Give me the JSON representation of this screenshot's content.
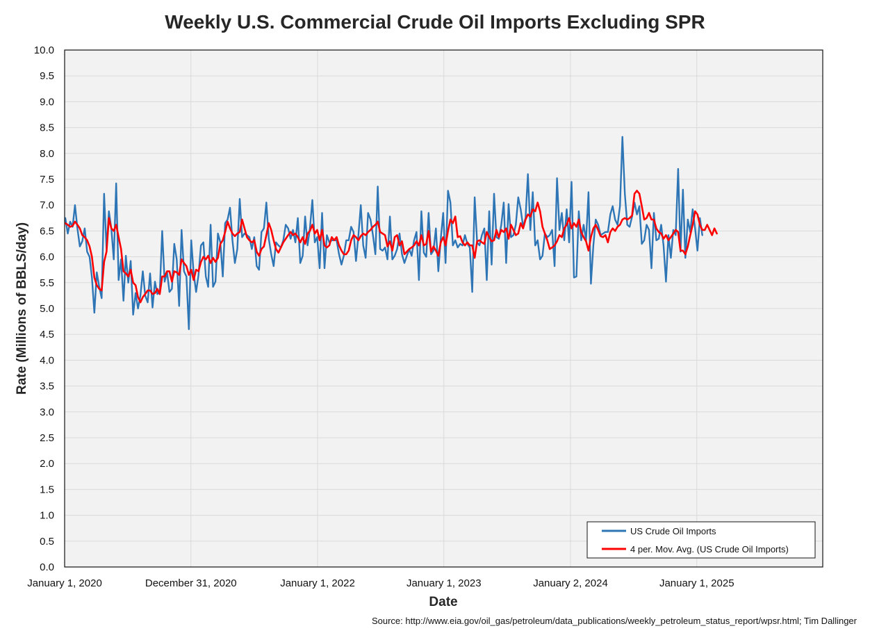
{
  "title": "Weekly U.S. Commercial Crude Oil Imports Excluding SPR",
  "source": "Source: http://www.eia.gov/oil_gas/petroleum/data_publications/weekly_petroleum_status_report/wpsr.html; Tim Dallinger",
  "colors": {
    "imports": "#2e75b6",
    "moving_avg": "#ff0000",
    "plot_bg": "#f2f2f2",
    "grid": "#d9d9d9"
  },
  "chart_data": {
    "type": "line",
    "title": "Weekly U.S. Commercial Crude Oil Imports Excluding SPR",
    "xlabel": "Date",
    "ylabel": "Rate (Millions of BBLS/day)",
    "ylim": [
      0,
      10
    ],
    "y_ticks": [
      "0.0",
      "0.5",
      "1.0",
      "1.5",
      "2.0",
      "2.5",
      "3.0",
      "3.5",
      "4.0",
      "4.5",
      "5.0",
      "5.5",
      "6.0",
      "6.5",
      "7.0",
      "7.5",
      "8.0",
      "8.5",
      "9.0",
      "9.5",
      "10.0"
    ],
    "x_ticks": [
      "January 1, 2020",
      "December 31, 2020",
      "January 1, 2022",
      "January 1, 2023",
      "January 2, 2024",
      "January 1, 2025"
    ],
    "x_range": [
      "2020-01-01",
      "2025-12-31"
    ],
    "first_week": "2020-01-03",
    "x_step": "1 week",
    "grid": true,
    "legend_position": "bottom-right",
    "series": [
      {
        "name": "US Crude Oil Imports",
        "values": [
          6.75,
          6.45,
          6.68,
          6.58,
          7.0,
          6.55,
          6.2,
          6.3,
          6.55,
          6.1,
          6.0,
          5.6,
          4.92,
          5.7,
          5.42,
          5.2,
          7.22,
          6.15,
          6.88,
          6.55,
          5.95,
          7.42,
          5.55,
          5.95,
          5.15,
          6.02,
          5.5,
          5.92,
          4.88,
          5.3,
          5.0,
          5.25,
          5.72,
          5.25,
          5.12,
          5.68,
          5.02,
          5.52,
          5.28,
          5.32,
          6.5,
          5.52,
          5.7,
          5.32,
          5.38,
          6.25,
          5.95,
          5.05,
          6.52,
          5.72,
          5.62,
          4.6,
          6.32,
          5.68,
          5.32,
          5.65,
          6.22,
          6.28,
          5.62,
          5.42,
          6.62,
          5.42,
          5.52,
          6.45,
          6.28,
          5.62,
          6.65,
          6.72,
          6.95,
          6.32,
          5.88,
          6.15,
          7.12,
          6.38,
          6.45,
          6.42,
          6.38,
          6.15,
          6.38,
          5.82,
          5.75,
          6.48,
          6.55,
          7.05,
          6.35,
          6.05,
          5.82,
          6.28,
          6.22,
          6.18,
          6.32,
          6.62,
          6.55,
          6.35,
          6.52,
          6.28,
          6.75,
          5.88,
          6.02,
          6.78,
          6.22,
          6.55,
          7.1,
          6.28,
          6.38,
          5.78,
          6.85,
          5.78,
          6.42,
          6.28,
          6.32,
          6.32,
          6.32,
          6.05,
          5.85,
          6.02,
          6.32,
          6.32,
          6.58,
          6.48,
          5.92,
          6.42,
          7.0,
          6.22,
          5.98,
          6.85,
          6.72,
          6.42,
          6.05,
          7.36,
          6.15,
          6.12,
          6.18,
          5.95,
          6.78,
          5.95,
          6.02,
          6.15,
          6.45,
          6.05,
          5.88,
          6.02,
          6.15,
          6.02,
          6.32,
          6.48,
          5.55,
          6.88,
          6.08,
          6.0,
          6.85,
          6.05,
          6.12,
          6.55,
          5.72,
          6.35,
          6.85,
          5.88,
          7.28,
          7.05,
          6.22,
          6.32,
          6.18,
          6.25,
          6.22,
          6.42,
          6.25,
          6.18,
          5.32,
          7.15,
          6.28,
          6.22,
          6.42,
          6.55,
          5.55,
          6.88,
          5.85,
          7.22,
          6.38,
          6.35,
          6.62,
          7.05,
          5.88,
          7.02,
          6.38,
          6.42,
          6.62,
          7.15,
          6.92,
          6.58,
          6.75,
          7.6,
          6.52,
          7.25,
          6.22,
          6.32,
          5.95,
          6.02,
          6.45,
          6.38,
          6.42,
          6.52,
          5.82,
          7.52,
          6.52,
          6.85,
          6.32,
          6.92,
          6.28,
          7.45,
          5.6,
          5.62,
          6.88,
          6.32,
          6.62,
          6.32,
          7.25,
          5.48,
          6.22,
          6.72,
          6.62,
          6.42,
          6.45,
          6.48,
          6.48,
          6.82,
          6.98,
          6.72,
          6.62,
          6.98,
          8.32,
          7.22,
          6.62,
          6.58,
          6.78,
          7.05,
          6.82,
          6.98,
          6.25,
          6.32,
          6.62,
          6.52,
          5.78,
          6.85,
          6.32,
          6.35,
          6.62,
          6.22,
          5.52,
          6.42,
          5.98,
          6.52,
          6.42,
          7.7,
          6.1,
          7.3,
          5.98,
          6.72,
          6.48,
          6.92,
          6.55,
          6.12,
          6.75,
          6.42
        ]
      },
      {
        "name": "4 per. Mov. Avg. (US Crude Oil Imports)",
        "values": [
          6.65,
          6.62,
          6.58,
          6.6,
          6.68,
          6.62,
          6.55,
          6.42,
          6.38,
          6.32,
          6.2,
          6.0,
          5.6,
          5.45,
          5.38,
          5.35,
          5.9,
          6.1,
          6.75,
          6.55,
          6.5,
          6.62,
          6.38,
          6.15,
          5.72,
          5.68,
          5.62,
          5.75,
          5.5,
          5.45,
          5.22,
          5.12,
          5.22,
          5.28,
          5.35,
          5.35,
          5.28,
          5.3,
          5.38,
          5.28,
          5.62,
          5.62,
          5.72,
          5.72,
          5.52,
          5.72,
          5.7,
          5.65,
          5.95,
          5.88,
          5.82,
          5.65,
          5.75,
          5.55,
          5.75,
          5.72,
          5.9,
          6.0,
          5.95,
          6.02,
          5.88,
          5.98,
          5.9,
          5.98,
          6.25,
          6.32,
          6.48,
          6.68,
          6.55,
          6.45,
          6.4,
          6.45,
          6.48,
          6.72,
          6.55,
          6.38,
          6.32,
          6.28,
          6.32,
          6.1,
          6.02,
          6.15,
          6.2,
          6.42,
          6.65,
          6.52,
          6.32,
          6.15,
          6.08,
          6.18,
          6.28,
          6.35,
          6.42,
          6.48,
          6.42,
          6.45,
          6.38,
          6.28,
          6.38,
          6.25,
          6.45,
          6.5,
          6.62,
          6.45,
          6.52,
          6.32,
          6.52,
          6.22,
          6.18,
          6.22,
          6.38,
          6.32,
          6.38,
          6.22,
          6.12,
          6.05,
          6.05,
          6.12,
          6.32,
          6.42,
          6.38,
          6.32,
          6.4,
          6.45,
          6.42,
          6.48,
          6.52,
          6.58,
          6.62,
          6.68,
          6.48,
          6.45,
          6.42,
          6.2,
          6.3,
          6.12,
          6.38,
          6.42,
          6.22,
          6.3,
          6.05,
          6.1,
          6.15,
          6.18,
          6.22,
          6.3,
          6.22,
          6.42,
          6.22,
          6.25,
          6.5,
          6.1,
          6.2,
          6.12,
          6.02,
          6.28,
          6.38,
          6.22,
          6.5,
          6.72,
          6.65,
          6.78,
          6.38,
          6.4,
          6.28,
          6.22,
          6.28,
          6.22,
          6.22,
          5.98,
          6.3,
          6.32,
          6.28,
          6.25,
          6.48,
          6.38,
          6.3,
          6.32,
          6.52,
          6.38,
          6.52,
          6.48,
          6.55,
          6.35,
          6.62,
          6.52,
          6.42,
          6.45,
          6.65,
          6.55,
          6.72,
          6.82,
          6.78,
          6.92,
          6.88,
          7.05,
          6.88,
          6.58,
          6.45,
          6.32,
          6.15,
          6.18,
          6.22,
          6.3,
          6.42,
          6.38,
          6.55,
          6.62,
          6.75,
          6.55,
          6.65,
          6.58,
          6.72,
          6.48,
          6.38,
          6.3,
          6.12,
          6.38,
          6.55,
          6.62,
          6.52,
          6.4,
          6.38,
          6.42,
          6.28,
          6.48,
          6.55,
          6.5,
          6.58,
          6.62,
          6.72,
          6.75,
          6.72,
          6.75,
          6.8,
          7.22,
          7.28,
          7.22,
          6.98,
          6.72,
          6.75,
          6.85,
          6.72,
          6.72,
          6.55,
          6.48,
          6.45,
          6.35,
          6.42,
          6.32,
          6.38,
          6.45,
          6.52,
          6.48,
          6.12,
          6.12,
          6.05,
          6.2,
          6.42,
          6.62,
          6.88,
          6.82,
          6.62,
          6.52,
          6.52,
          6.62,
          6.52,
          6.42,
          6.55,
          6.45
        ]
      }
    ]
  }
}
